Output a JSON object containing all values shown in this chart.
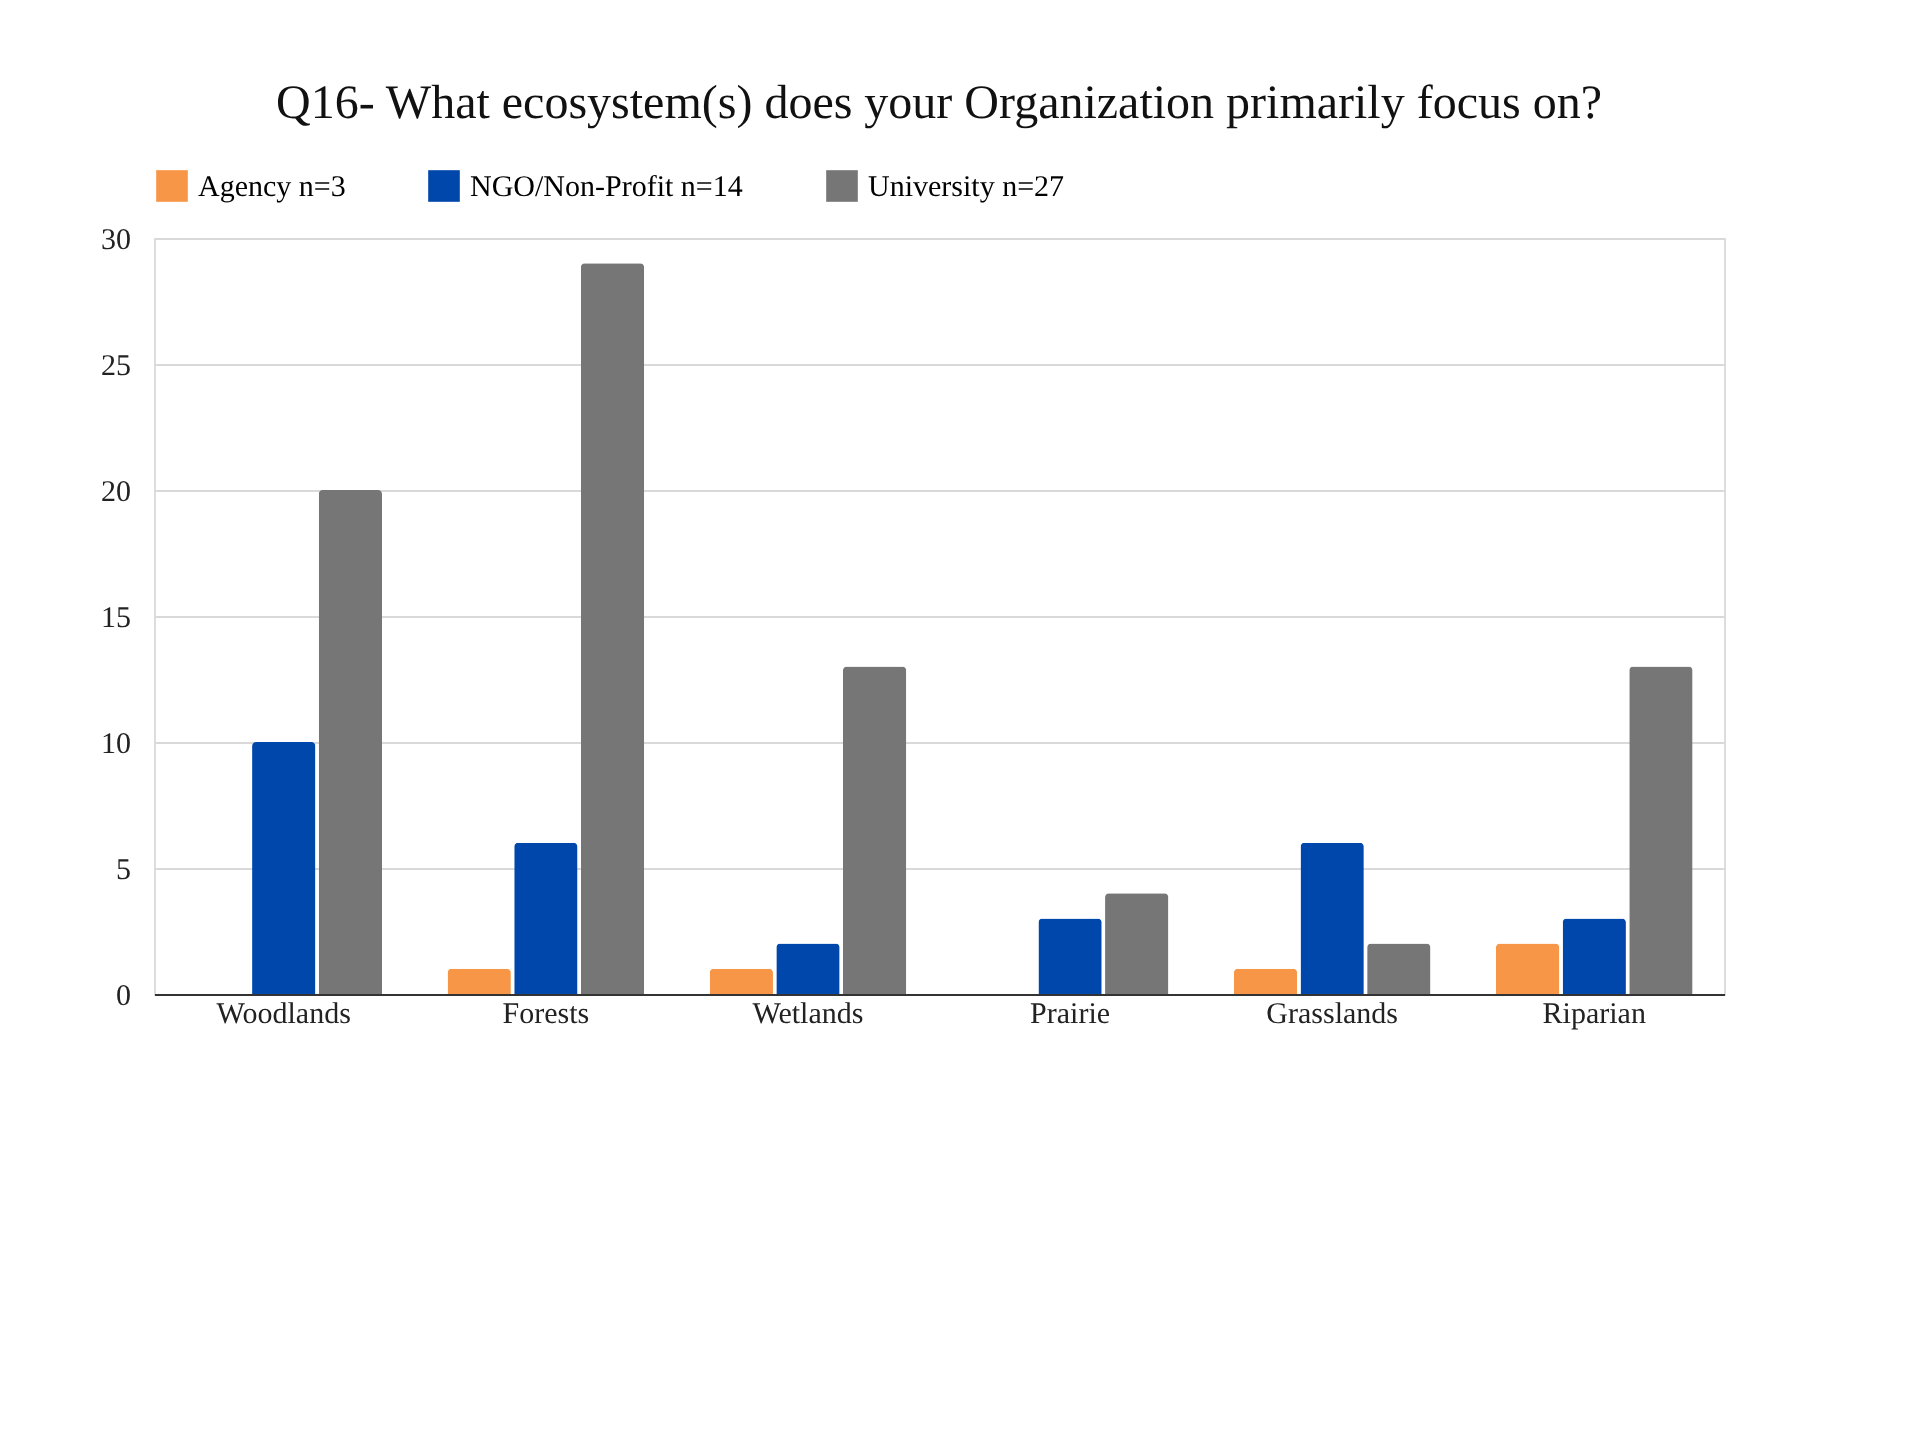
{
  "chart_data": {
    "type": "bar",
    "title": "Q16- What ecosystem(s) does your Organization primarily focus on?",
    "categories": [
      "Woodlands",
      "Forests",
      "Wetlands",
      "Prairie",
      "Grasslands",
      "Riparian"
    ],
    "series": [
      {
        "name": "Agency n=3",
        "color": "#f79646",
        "values": [
          0,
          1,
          1,
          0,
          1,
          2
        ]
      },
      {
        "name": "NGO/Non-Profit n=14",
        "color": "#0047ab",
        "values": [
          10,
          6,
          2,
          3,
          6,
          3
        ]
      },
      {
        "name": "University n=27",
        "color": "#767676",
        "values": [
          20,
          29,
          13,
          4,
          2,
          13
        ]
      }
    ],
    "ylim": [
      0,
      30
    ],
    "yticks": [
      0,
      5,
      10,
      15,
      20,
      25,
      30
    ],
    "grid": "y",
    "legend": "top"
  }
}
